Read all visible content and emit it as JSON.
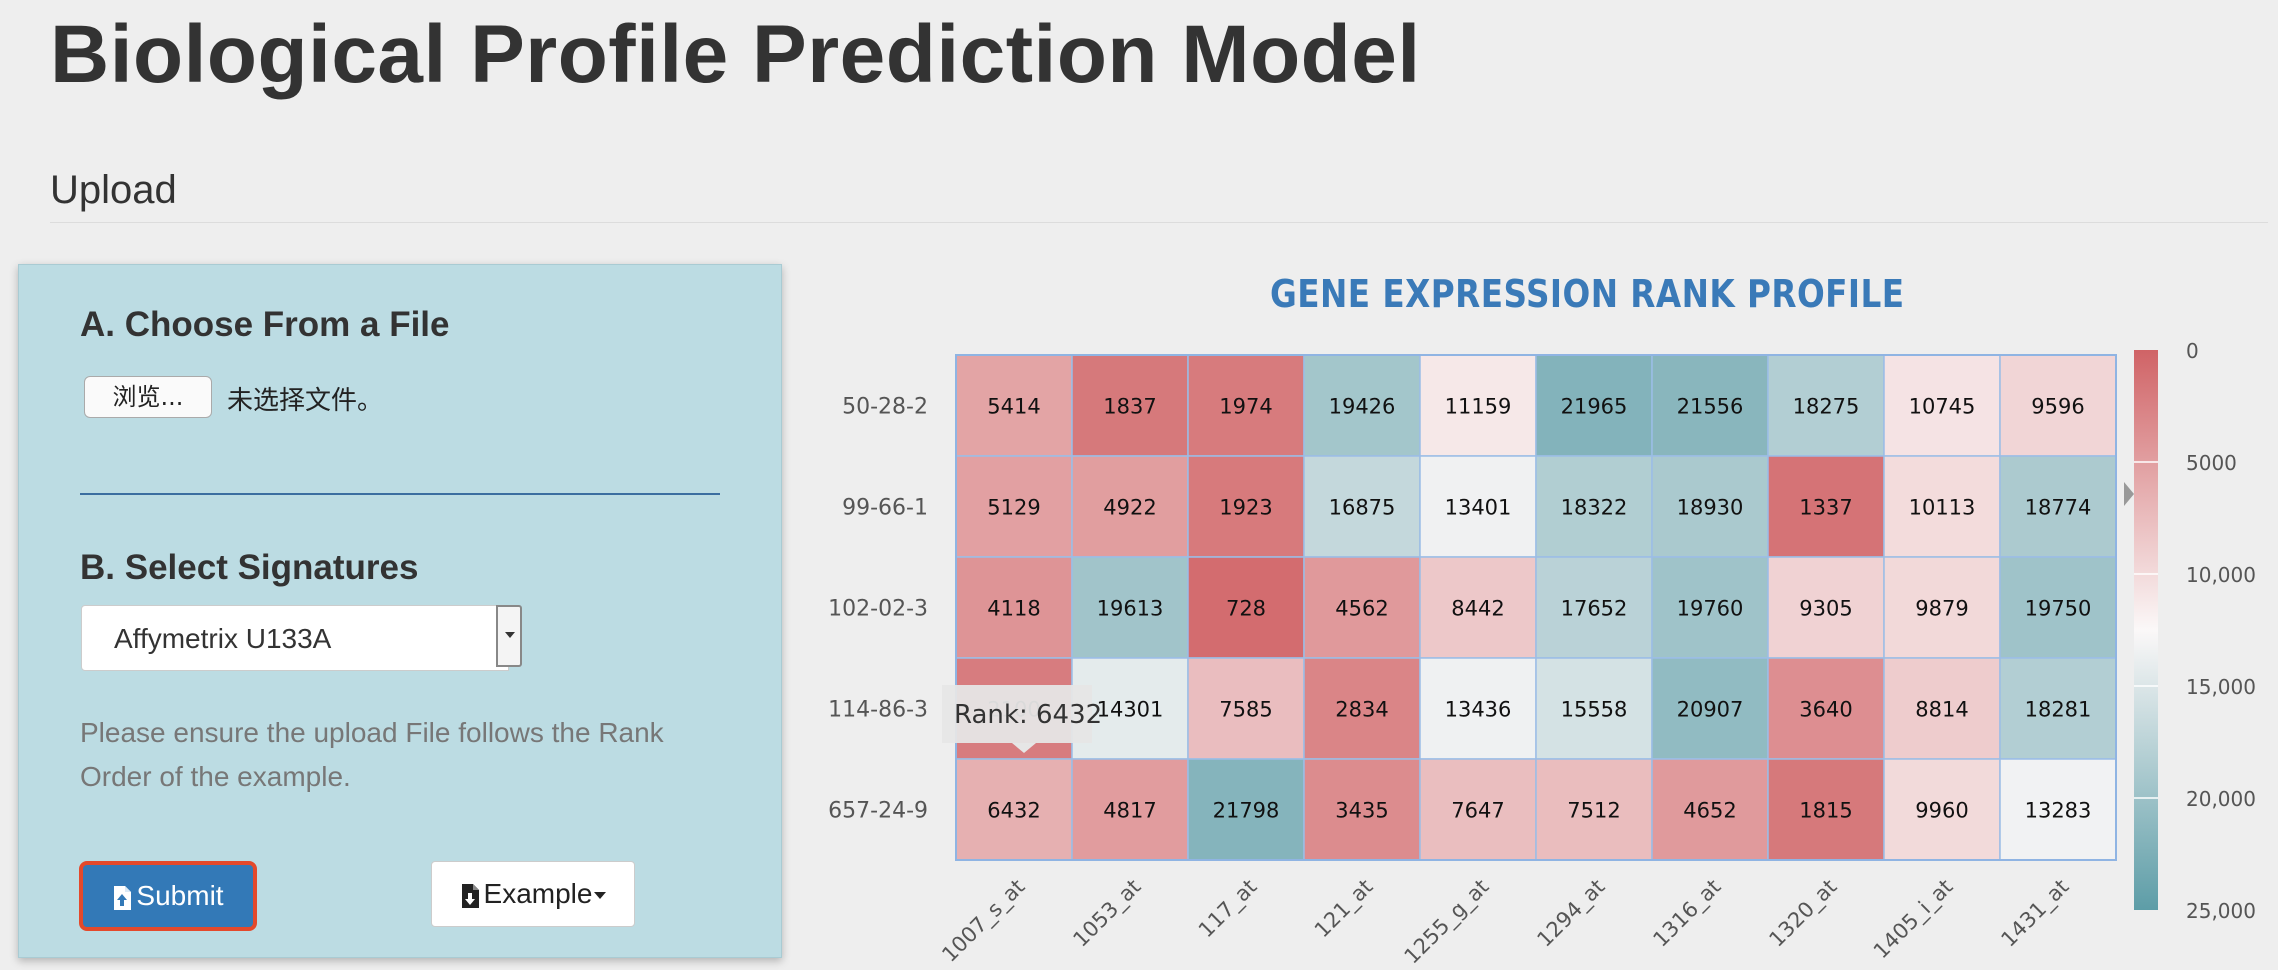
{
  "page": {
    "title": "Biological Profile Prediction Model",
    "section": "Upload"
  },
  "upload_panel": {
    "choose_heading": "A. Choose From a File",
    "browse_label": "浏览...",
    "file_status": "未选择文件。",
    "signatures_heading": "B. Select Signatures",
    "signature_selected": "Affymetrix U133A",
    "help_text": "Please ensure the upload File follows the Rank Order of the example.",
    "submit_label": "Submit",
    "example_label": "Example"
  },
  "chart_data": {
    "type": "heatmap",
    "title": "GENE EXPRESSION RANK PROFILE",
    "rows": [
      "50-28-2",
      "99-66-1",
      "102-02-3",
      "114-86-3",
      "657-24-9"
    ],
    "columns": [
      "1007_s_at",
      "1053_at",
      "117_at",
      "121_at",
      "1255_g_at",
      "1294_at",
      "1316_at",
      "1320_at",
      "1405_i_at",
      "1431_at"
    ],
    "values": [
      [
        5414,
        1837,
        1974,
        19426,
        11159,
        21965,
        21556,
        18275,
        10745,
        9596
      ],
      [
        5129,
        4922,
        1923,
        16875,
        13401,
        18322,
        18930,
        1337,
        10113,
        18774
      ],
      [
        4118,
        19613,
        728,
        4562,
        8442,
        17652,
        19760,
        9305,
        9879,
        19750
      ],
      [
        2100,
        14301,
        7585,
        2834,
        13436,
        15558,
        20907,
        3640,
        8814,
        18281
      ],
      [
        6432,
        4817,
        21798,
        3435,
        7647,
        7512,
        4652,
        1815,
        9960,
        13283
      ]
    ],
    "color_scale": {
      "min": 0,
      "max": 25000,
      "low_color": "#d06366",
      "mid_color": "#fbf8f8",
      "high_color": "#5d9da7",
      "tick_labels": [
        "0",
        "5000",
        "10,000",
        "15,000",
        "20,000",
        "25,000"
      ],
      "tick_values": [
        0,
        5000,
        10000,
        15000,
        20000,
        25000
      ]
    },
    "tooltip": {
      "text": "Rank: 6432",
      "row": 4,
      "col": 0
    }
  }
}
